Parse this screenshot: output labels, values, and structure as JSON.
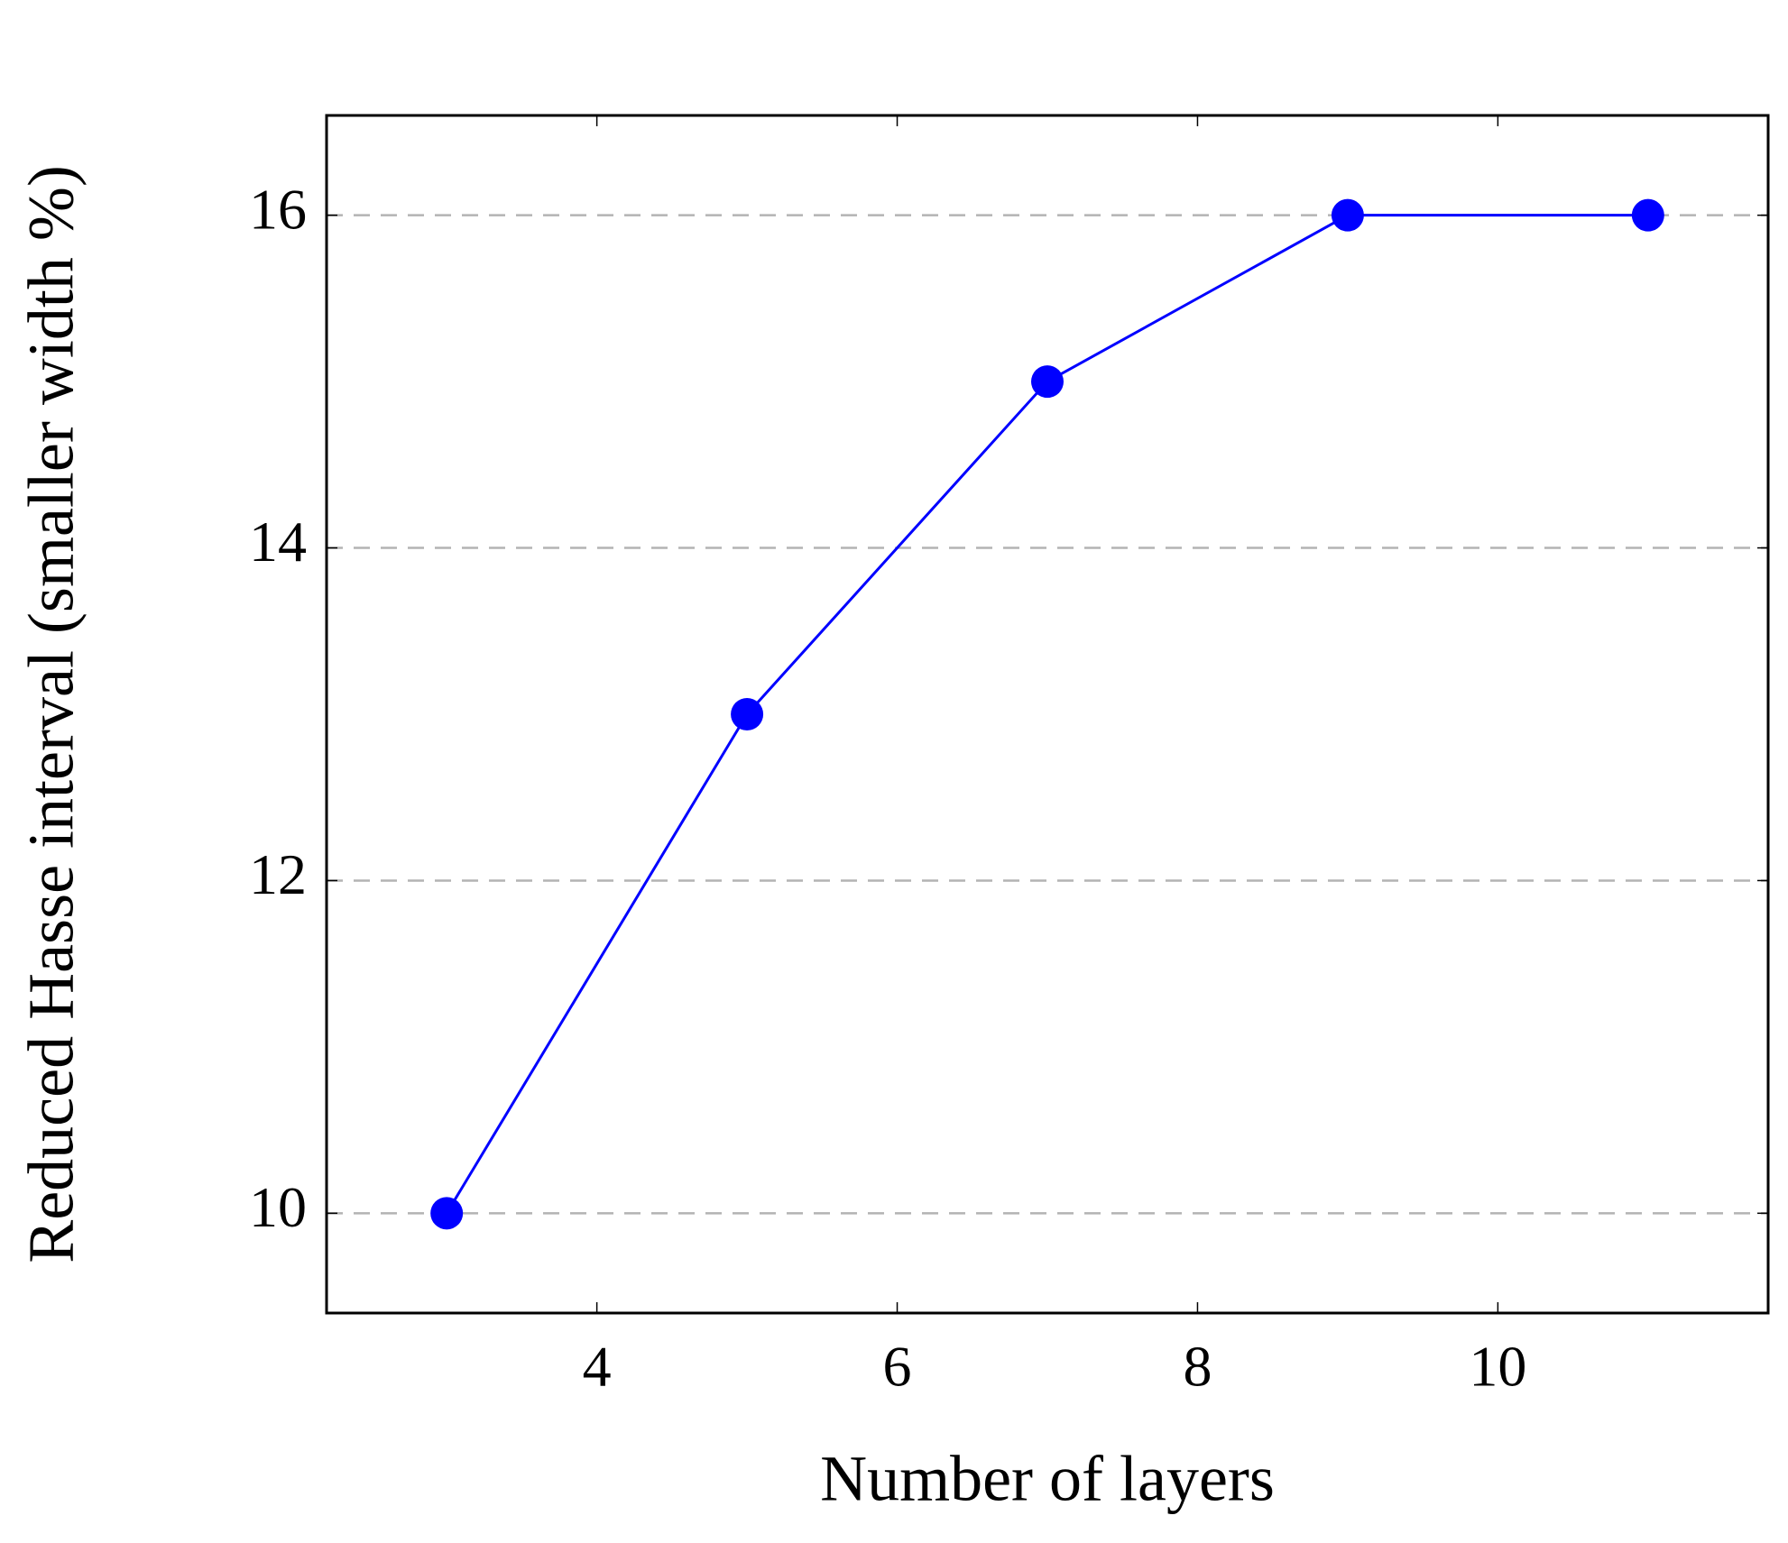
{
  "chart_data": {
    "type": "line",
    "x_label": "Number of layers",
    "y_label": "Reduced Hasse interval (smaller width %)",
    "x": [
      3,
      5,
      7,
      9,
      11
    ],
    "series": [
      {
        "color": "#0000ff",
        "values": [
          10,
          13,
          15,
          16,
          16
        ]
      }
    ],
    "xlim": [
      2.2,
      11.8
    ],
    "ylim": [
      9.4,
      16.6
    ],
    "xticks": [
      4,
      6,
      8,
      10
    ],
    "yticks": [
      10,
      12,
      14,
      16
    ],
    "grid": "y"
  }
}
